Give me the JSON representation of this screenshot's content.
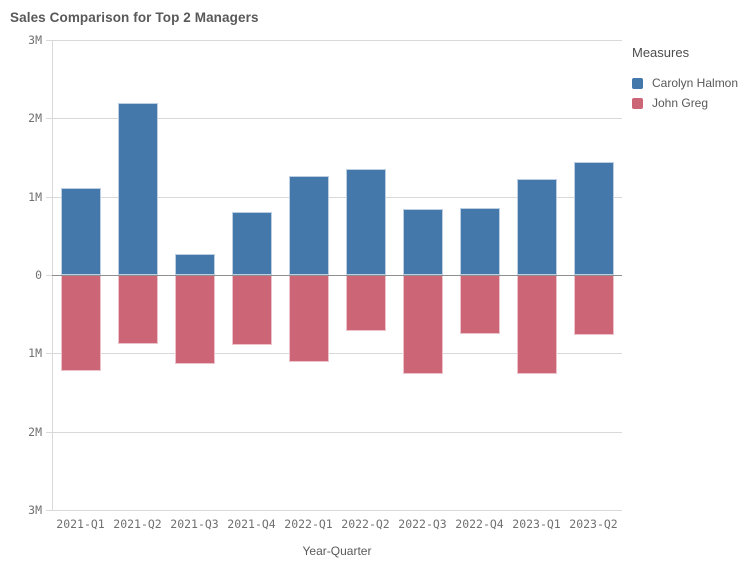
{
  "title": "Sales Comparison for Top 2 Managers",
  "legend": {
    "title": "Measures",
    "items": [
      {
        "label": "Carolyn Halmon",
        "color": "#4477aa"
      },
      {
        "label": "John Greg",
        "color": "#cc6677"
      }
    ]
  },
  "colors": {
    "background": "#ffffff",
    "title_text": "#595959",
    "tick_text": "#707070",
    "gridline": "#d9d9d9",
    "zero_line": "#8f8f8f",
    "axis_line": "#d9d9d9",
    "carolyn_fill": "#4477aa",
    "carolyn_edge": "#bccfe2",
    "john_fill": "#cc6677",
    "john_edge": "#ecc2cb"
  },
  "chart_data": {
    "type": "bar",
    "subtype": "diverging-vertical",
    "title": "Sales Comparison for Top 2 Managers",
    "xlabel": "Year-Quarter",
    "ylabel": "",
    "unit": "millions",
    "ylim": [
      -3,
      3
    ],
    "ytick_values": [
      3,
      2,
      1,
      0,
      -1,
      -2,
      -3
    ],
    "yticks": [
      "3M",
      "2M",
      "1M",
      "0",
      "1M",
      "2M",
      "3M"
    ],
    "grid": true,
    "legend_position": "right",
    "categories": [
      "2021-Q1",
      "2021-Q2",
      "2021-Q3",
      "2021-Q4",
      "2022-Q1",
      "2022-Q2",
      "2022-Q3",
      "2022-Q4",
      "2023-Q1",
      "2023-Q2"
    ],
    "series": [
      {
        "name": "Carolyn Halmon",
        "color": "#4477aa",
        "edge": "#bccfe2",
        "values": [
          1.11,
          2.2,
          0.27,
          0.81,
          1.27,
          1.35,
          0.84,
          0.86,
          1.23,
          1.44
        ]
      },
      {
        "name": "John Greg",
        "color": "#cc6677",
        "edge": "#ecc2cb",
        "values": [
          -1.22,
          -0.88,
          -1.13,
          -0.89,
          -1.11,
          -0.71,
          -1.26,
          -0.75,
          -1.26,
          -0.77
        ]
      }
    ]
  }
}
